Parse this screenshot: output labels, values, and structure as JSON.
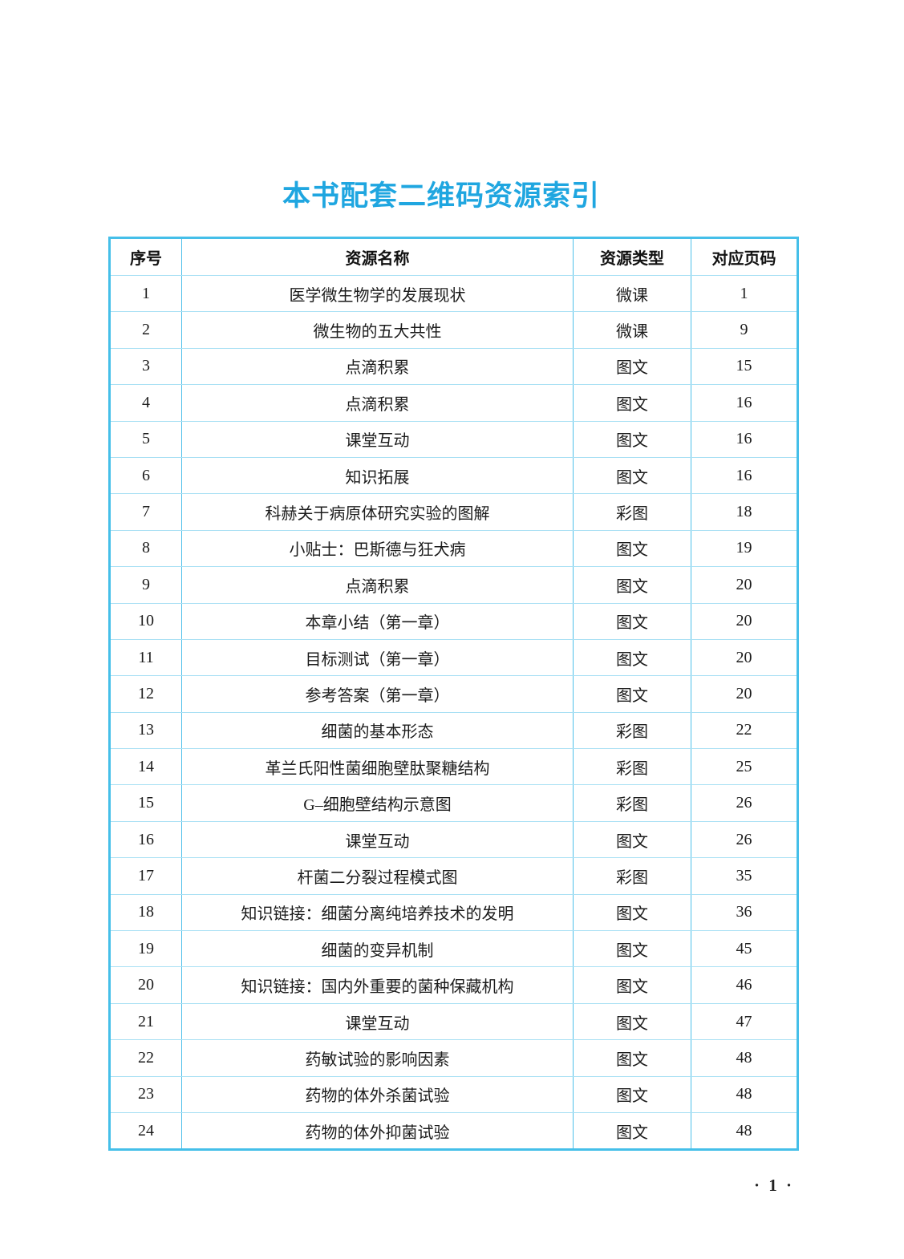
{
  "title": "本书配套二维码资源索引",
  "table": {
    "columns": [
      "序号",
      "资源名称",
      "资源类型",
      "对应页码"
    ],
    "rows": [
      {
        "no": "1",
        "name": "医学微生物学的发展现状",
        "type": "微课",
        "page": "1"
      },
      {
        "no": "2",
        "name": "微生物的五大共性",
        "type": "微课",
        "page": "9"
      },
      {
        "no": "3",
        "name": "点滴积累",
        "type": "图文",
        "page": "15"
      },
      {
        "no": "4",
        "name": "点滴积累",
        "type": "图文",
        "page": "16"
      },
      {
        "no": "5",
        "name": "课堂互动",
        "type": "图文",
        "page": "16"
      },
      {
        "no": "6",
        "name": "知识拓展",
        "type": "图文",
        "page": "16"
      },
      {
        "no": "7",
        "name": "科赫关于病原体研究实验的图解",
        "type": "彩图",
        "page": "18"
      },
      {
        "no": "8",
        "name": "小贴士：巴斯德与狂犬病",
        "type": "图文",
        "page": "19"
      },
      {
        "no": "9",
        "name": "点滴积累",
        "type": "图文",
        "page": "20"
      },
      {
        "no": "10",
        "name": "本章小结（第一章）",
        "type": "图文",
        "page": "20"
      },
      {
        "no": "11",
        "name": "目标测试（第一章）",
        "type": "图文",
        "page": "20"
      },
      {
        "no": "12",
        "name": "参考答案（第一章）",
        "type": "图文",
        "page": "20"
      },
      {
        "no": "13",
        "name": "细菌的基本形态",
        "type": "彩图",
        "page": "22"
      },
      {
        "no": "14",
        "name": "革兰氏阳性菌细胞壁肽聚糖结构",
        "type": "彩图",
        "page": "25"
      },
      {
        "no": "15",
        "name": "G–细胞壁结构示意图",
        "type": "彩图",
        "page": "26"
      },
      {
        "no": "16",
        "name": "课堂互动",
        "type": "图文",
        "page": "26"
      },
      {
        "no": "17",
        "name": "杆菌二分裂过程模式图",
        "type": "彩图",
        "page": "35"
      },
      {
        "no": "18",
        "name": "知识链接：细菌分离纯培养技术的发明",
        "type": "图文",
        "page": "36"
      },
      {
        "no": "19",
        "name": "细菌的变异机制",
        "type": "图文",
        "page": "45"
      },
      {
        "no": "20",
        "name": "知识链接：国内外重要的菌种保藏机构",
        "type": "图文",
        "page": "46"
      },
      {
        "no": "21",
        "name": "课堂互动",
        "type": "图文",
        "page": "47"
      },
      {
        "no": "22",
        "name": "药敏试验的影响因素",
        "type": "图文",
        "page": "48"
      },
      {
        "no": "23",
        "name": "药物的体外杀菌试验",
        "type": "图文",
        "page": "48"
      },
      {
        "no": "24",
        "name": "药物的体外抑菌试验",
        "type": "图文",
        "page": "48"
      }
    ]
  },
  "footer": {
    "page_label": "· 1 ·"
  },
  "colors": {
    "title_blue": "#1fa6e0",
    "border_outer": "#45bfe9",
    "border_vertical": "#4fc0ea",
    "border_horizontal": "#a9e0f4",
    "body_text": "#1c1c1c"
  }
}
